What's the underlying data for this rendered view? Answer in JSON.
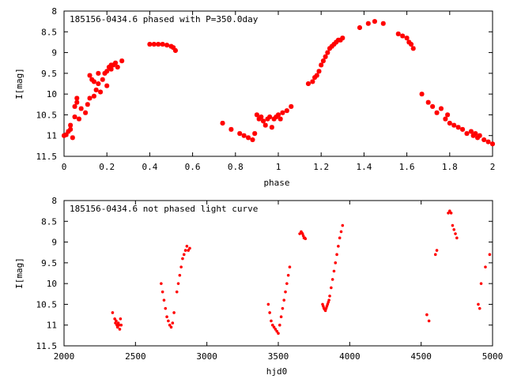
{
  "colors": {
    "points": "#ff0000",
    "axes": "#000000",
    "background": "#ffffff"
  },
  "chart_data": [
    {
      "type": "scatter",
      "title": "185156-0434.6 phased with P=350.0day",
      "xlabel": "phase",
      "ylabel": "I[mag]",
      "xlim": [
        0,
        2
      ],
      "ylim": [
        8,
        11.5
      ],
      "y_inverted": true,
      "grid": false,
      "marker": "star",
      "xticks": [
        "0",
        "0.2",
        "0.4",
        "0.6",
        "0.8",
        "1",
        "1.2",
        "1.4",
        "1.6",
        "1.8",
        "2"
      ],
      "yticks": [
        "8",
        "8.5",
        "9",
        "9.5",
        "10",
        "10.5",
        "11",
        "11.5"
      ],
      "x": [
        0.0,
        0.01,
        0.02,
        0.03,
        0.04,
        0.05,
        0.06,
        0.07,
        0.08,
        0.1,
        0.11,
        0.12,
        0.13,
        0.14,
        0.15,
        0.16,
        0.17,
        0.18,
        0.19,
        0.2,
        0.21,
        0.22,
        0.23,
        0.24,
        0.25,
        0.27,
        0.03,
        0.05,
        0.06,
        0.12,
        0.14,
        0.16,
        0.2,
        0.22,
        0.4,
        0.42,
        0.44,
        0.46,
        0.48,
        0.5,
        0.51,
        0.52,
        0.74,
        0.78,
        0.82,
        0.84,
        0.86,
        0.88,
        0.89,
        0.9,
        0.91,
        0.92,
        0.93,
        0.94,
        0.95,
        0.96,
        0.97,
        0.98,
        0.99,
        1.0,
        1.01,
        1.02,
        1.04,
        1.06,
        1.14,
        1.16,
        1.17,
        1.18,
        1.19,
        1.2,
        1.21,
        1.22,
        1.23,
        1.24,
        1.25,
        1.26,
        1.27,
        1.28,
        1.29,
        1.3,
        1.38,
        1.42,
        1.45,
        1.49,
        1.56,
        1.58,
        1.6,
        1.61,
        1.62,
        1.63,
        1.67,
        1.7,
        1.72,
        1.74,
        1.76,
        1.78,
        1.79,
        1.8,
        1.82,
        1.84,
        1.86,
        1.88,
        1.9,
        1.91,
        1.92,
        1.93,
        1.94,
        1.96,
        1.98,
        2.0
      ],
      "y": [
        11.0,
        10.98,
        10.9,
        10.75,
        11.05,
        10.55,
        10.1,
        10.6,
        10.35,
        10.45,
        10.25,
        10.1,
        9.65,
        10.05,
        9.9,
        9.75,
        9.95,
        9.65,
        9.5,
        9.8,
        9.35,
        9.4,
        9.3,
        9.25,
        9.35,
        9.2,
        10.85,
        10.3,
        10.2,
        9.55,
        9.7,
        9.5,
        9.45,
        9.3,
        8.8,
        8.8,
        8.8,
        8.8,
        8.82,
        8.85,
        8.88,
        8.95,
        10.7,
        10.85,
        10.95,
        11.0,
        11.05,
        11.1,
        10.95,
        10.5,
        10.6,
        10.55,
        10.65,
        10.75,
        10.6,
        10.55,
        10.8,
        10.6,
        10.55,
        10.5,
        10.6,
        10.45,
        10.4,
        10.3,
        9.75,
        9.7,
        9.6,
        9.55,
        9.45,
        9.3,
        9.2,
        9.1,
        9.0,
        8.9,
        8.85,
        8.8,
        8.75,
        8.7,
        8.7,
        8.65,
        8.4,
        8.3,
        8.25,
        8.3,
        8.55,
        8.6,
        8.65,
        8.75,
        8.8,
        8.9,
        10.0,
        10.2,
        10.3,
        10.45,
        10.35,
        10.6,
        10.5,
        10.7,
        10.75,
        10.8,
        10.85,
        10.95,
        10.9,
        11.0,
        10.95,
        11.05,
        11.0,
        11.1,
        11.15,
        11.2
      ]
    },
    {
      "type": "scatter",
      "title": "185156-0434.6 not phased light curve",
      "xlabel": "hjd0",
      "ylabel": "I[mag]",
      "xlim": [
        2000,
        5000
      ],
      "ylim": [
        8,
        11.5
      ],
      "y_inverted": true,
      "grid": false,
      "marker": "dot",
      "xticks": [
        "2000",
        "2500",
        "3000",
        "3500",
        "4000",
        "4500",
        "5000"
      ],
      "yticks": [
        "8",
        "8.5",
        "9",
        "9.5",
        "10",
        "10.5",
        "11",
        "11.5"
      ],
      "x": [
        2340,
        2355,
        2360,
        2365,
        2370,
        2375,
        2380,
        2385,
        2390,
        2395,
        2400,
        2680,
        2690,
        2700,
        2710,
        2720,
        2730,
        2740,
        2750,
        2760,
        2770,
        2790,
        2800,
        2810,
        2820,
        2830,
        2840,
        2850,
        2860,
        2870,
        2880,
        3430,
        3440,
        3450,
        3460,
        3470,
        3480,
        3490,
        3500,
        3510,
        3520,
        3530,
        3540,
        3550,
        3560,
        3570,
        3580,
        3650,
        3660,
        3665,
        3670,
        3675,
        3680,
        3685,
        3690,
        3810,
        3815,
        3820,
        3825,
        3830,
        3835,
        3840,
        3845,
        3850,
        3855,
        3860,
        3870,
        3880,
        3890,
        3900,
        3910,
        3920,
        3930,
        3940,
        3950,
        4540,
        4555,
        4600,
        4610,
        4690,
        4700,
        4710,
        4720,
        4730,
        4740,
        4750,
        4900,
        4910,
        4920,
        4950,
        4980
      ],
      "y": [
        10.7,
        10.85,
        10.95,
        10.9,
        11.0,
        11.05,
        10.95,
        11.0,
        11.1,
        10.85,
        11.0,
        10.0,
        10.2,
        10.4,
        10.6,
        10.8,
        10.9,
        11.0,
        11.05,
        10.95,
        10.7,
        10.2,
        10.0,
        9.8,
        9.6,
        9.4,
        9.3,
        9.2,
        9.1,
        9.2,
        9.15,
        10.5,
        10.7,
        10.9,
        11.0,
        11.05,
        11.1,
        11.15,
        11.2,
        11.0,
        10.8,
        10.6,
        10.4,
        10.2,
        10.0,
        9.8,
        9.6,
        8.8,
        8.75,
        8.78,
        8.8,
        8.85,
        8.9,
        8.9,
        8.92,
        10.5,
        10.55,
        10.6,
        10.62,
        10.65,
        10.6,
        10.55,
        10.5,
        10.45,
        10.4,
        10.3,
        10.1,
        9.9,
        9.7,
        9.5,
        9.3,
        9.1,
        8.9,
        8.75,
        8.6,
        10.75,
        10.9,
        9.3,
        9.2,
        8.3,
        8.25,
        8.3,
        8.6,
        8.7,
        8.8,
        8.9,
        10.5,
        10.6,
        10.0,
        9.6,
        9.3
      ]
    }
  ]
}
